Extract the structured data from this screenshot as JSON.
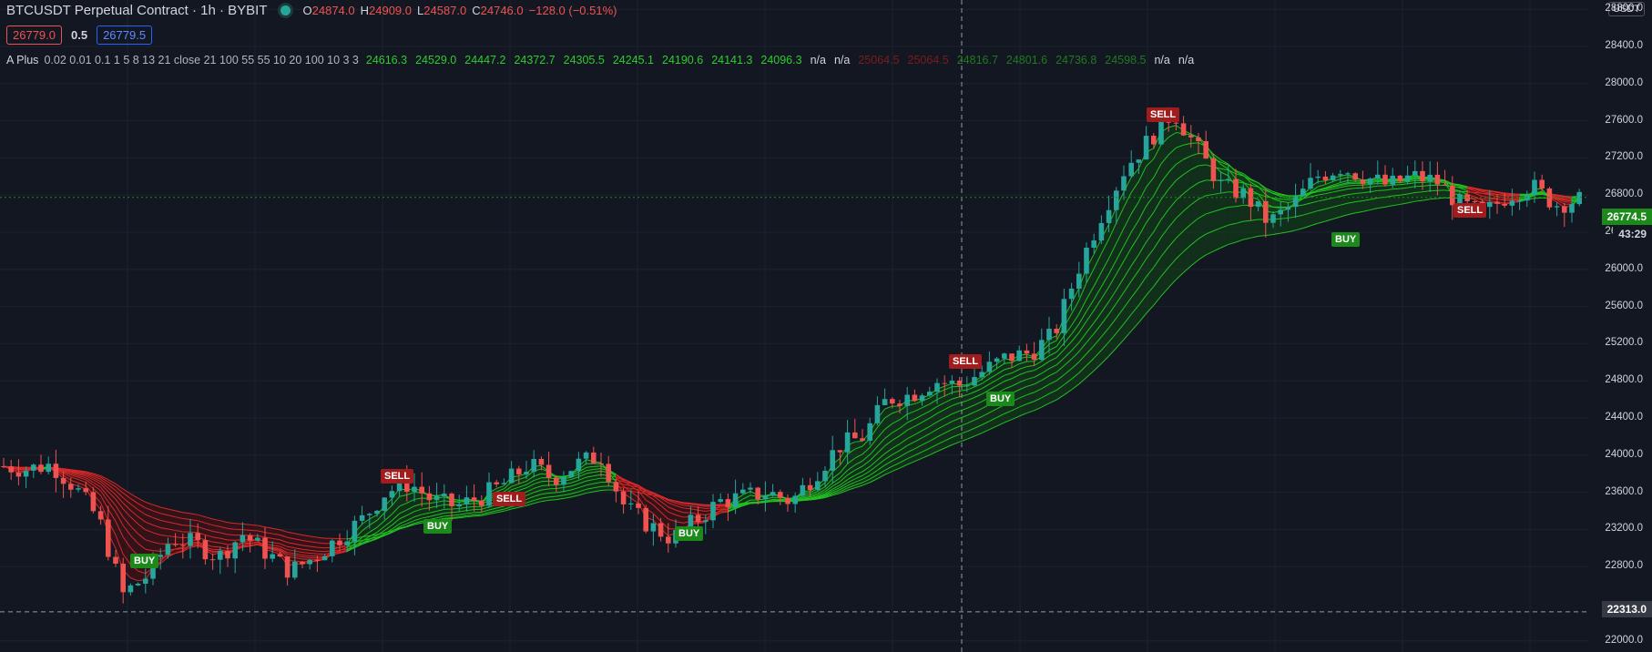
{
  "header": {
    "symbol_line": "BTCUSDT Perpetual Contract · 1h · BYBIT",
    "ohlc": {
      "o_label": "O",
      "o": "24874.0",
      "h_label": "H",
      "h": "24909.0",
      "l_label": "L",
      "l": "24587.0",
      "c_label": "C",
      "c": "24746.0",
      "change": "−128.0 (−0.51%)"
    }
  },
  "order_panel": {
    "sell_price": "26779.0",
    "spread": "0.5",
    "buy_price": "26779.5"
  },
  "indicator": {
    "name": "A Plus",
    "params": "0.02 0.01 0.1 1 5 8 13 21 close 21 100 55 55 10 20 100 10 3 3",
    "values": [
      {
        "text": "24616.3",
        "color": "#2ecc2e"
      },
      {
        "text": "24529.0",
        "color": "#2ecc2e"
      },
      {
        "text": "24447.2",
        "color": "#2ecc2e"
      },
      {
        "text": "24372.7",
        "color": "#2ecc2e"
      },
      {
        "text": "24305.5",
        "color": "#2ecc2e"
      },
      {
        "text": "24245.1",
        "color": "#2ecc2e"
      },
      {
        "text": "24190.6",
        "color": "#2ecc2e"
      },
      {
        "text": "24141.3",
        "color": "#2ecc2e"
      },
      {
        "text": "24096.3",
        "color": "#2ecc2e"
      },
      {
        "text": "n/a",
        "color": "#d1d4dc"
      },
      {
        "text": "n/a",
        "color": "#d1d4dc"
      },
      {
        "text": "25064.5",
        "color": "#7a1c1c"
      },
      {
        "text": "25064.5",
        "color": "#7a1c1c"
      },
      {
        "text": "24816.7",
        "color": "#1f7a1f"
      },
      {
        "text": "24801.6",
        "color": "#1f7a1f"
      },
      {
        "text": "24736.8",
        "color": "#1f7a1f"
      },
      {
        "text": "24598.5",
        "color": "#1f7a1f"
      },
      {
        "text": "n/a",
        "color": "#d1d4dc"
      },
      {
        "text": "n/a",
        "color": "#d1d4dc"
      }
    ]
  },
  "price_axis": {
    "currency": "USDT",
    "labels": [
      "28800.0",
      "28400.0",
      "28000.0",
      "27600.0",
      "27200.0",
      "26800.0",
      "26400.0",
      "26000.0",
      "25600.0",
      "25200.0",
      "24800.0",
      "24400.0",
      "24000.0",
      "23600.0",
      "23200.0",
      "22800.0",
      "22000.0"
    ],
    "current_price": "26774.5",
    "countdown": "43:29",
    "crosshair_price": "22313.0"
  },
  "signals": [
    {
      "type": "sell",
      "label": "SELL"
    },
    {
      "type": "buy",
      "label": "BUY"
    },
    {
      "type": "sell",
      "label": "SELL"
    },
    {
      "type": "buy",
      "label": "BUY"
    },
    {
      "type": "sell",
      "label": "SELL"
    },
    {
      "type": "buy",
      "label": "BUY"
    },
    {
      "type": "sell",
      "label": "SELL"
    },
    {
      "type": "buy",
      "label": "BUY"
    },
    {
      "type": "sell",
      "label": "SELL"
    },
    {
      "type": "buy",
      "label": "BUY"
    }
  ],
  "colors": {
    "bg": "#131722",
    "up": "#26a69a",
    "down": "#ef5350",
    "ribbon_green": "#22c022",
    "ribbon_red": "#d42a2a",
    "grid": "#1e222d"
  },
  "chart_data": {
    "type": "candlestick",
    "ylim": [
      21800,
      28900
    ],
    "yticks": [
      22000,
      22800,
      23200,
      23600,
      24000,
      24400,
      24800,
      25200,
      25600,
      26000,
      26400,
      26800,
      27200,
      27600,
      28000,
      28400,
      28800
    ],
    "close_path": [
      23880,
      23850,
      23900,
      23650,
      23300,
      22500,
      22700,
      23100,
      23050,
      22900,
      23150,
      22950,
      22750,
      22900,
      23100,
      23300,
      23600,
      23700,
      23500,
      23450,
      23550,
      23700,
      23900,
      23750,
      23900,
      24000,
      23450,
      23250,
      23100,
      23300,
      23500,
      23550,
      23600,
      23500,
      23800,
      24100,
      24200,
      24600,
      24650,
      24800,
      24750,
      24900,
      25050,
      25100,
      25300,
      26000,
      26600,
      27100,
      27400,
      27700,
      27300,
      26900,
      26800,
      26500,
      26700,
      27000,
      27100,
      27000,
      26900,
      27000,
      26950,
      26700,
      26600,
      26800,
      26900,
      26700,
      26750
    ],
    "price_last": 26774.5,
    "crosshair_price": 22313.0
  }
}
